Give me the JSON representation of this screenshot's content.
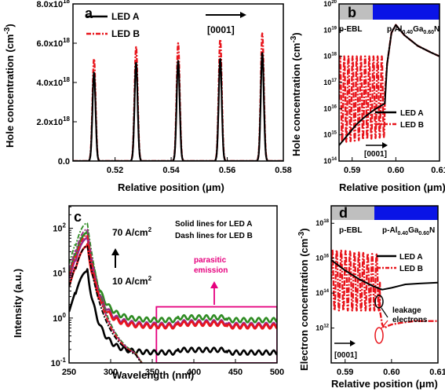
{
  "colors": {
    "ledA": "#000000",
    "ledB": "#e8141b",
    "green": "#2e8b22",
    "magenta": "#e6007e",
    "purple": "#9c2a8a",
    "pebl": "#bfbfbf",
    "algan": "#0a14e6"
  },
  "chart_data": [
    {
      "panel": "a",
      "type": "line",
      "xlabel": "Relative position (µm)",
      "ylabel": "Hole concentration (cm⁻³)",
      "xlim": [
        0.505,
        0.58
      ],
      "ylim": [
        0,
        8e+18
      ],
      "x_ticks": [
        "0.52",
        "0.54",
        "0.56",
        "0.58"
      ],
      "y_ticks": [
        "0.0",
        "2.0x10¹⁸",
        "4.0x10¹⁸",
        "6.0x10¹⁸",
        "8.0x10¹⁸"
      ],
      "direction_label": "[0001]",
      "peak_positions": [
        0.5125,
        0.5275,
        0.5425,
        0.5575,
        0.5725
      ],
      "series": [
        {
          "name": "LED A",
          "style": "solid",
          "peak_values": [
            4.5e+18,
            5e+18,
            5.1e+18,
            5.2e+18,
            5.5e+18
          ]
        },
        {
          "name": "LED B",
          "style": "dash-dot",
          "peak_values": [
            5.2e+18,
            5.8e+18,
            6e+18,
            6.2e+18,
            6.5e+18
          ]
        }
      ]
    },
    {
      "panel": "b",
      "type": "line",
      "xlabel": "Relative position (µm)",
      "ylabel": "Hole concentration (cm⁻³)",
      "xlim": [
        0.587,
        0.61
      ],
      "ylim_log10": [
        14,
        20
      ],
      "log_y": true,
      "x_ticks": [
        "0.59",
        "0.60",
        "0.61"
      ],
      "region_labels": [
        "p-EBL",
        "p-Al₀.₄₀Ga₀.₆₀N"
      ],
      "direction_label": "[0001]",
      "series": [
        {
          "name": "LED A",
          "style": "solid",
          "x": [
            0.587,
            0.589,
            0.591,
            0.593,
            0.595,
            0.597,
            0.5975,
            0.598,
            0.599,
            0.6,
            0.602,
            0.605,
            0.608,
            0.61
          ],
          "log10_y": [
            14.6,
            15.0,
            15.4,
            15.7,
            15.95,
            16.15,
            16.2,
            17.7,
            18.9,
            19.2,
            18.8,
            18.4,
            18.15,
            18.0
          ]
        },
        {
          "name": "LED B",
          "style": "dash-dot",
          "oscillation_log10_range": [
            15.0,
            18.0
          ],
          "x": [
            0.5975,
            0.598,
            0.599,
            0.6,
            0.602,
            0.605,
            0.608,
            0.61
          ],
          "log10_y": [
            16.6,
            17.7,
            18.9,
            19.2,
            18.8,
            18.4,
            18.15,
            18.0
          ]
        }
      ]
    },
    {
      "panel": "c",
      "type": "line",
      "xlabel": "Wavelength (nm)",
      "ylabel": "Intensity (a.u.)",
      "xlim": [
        250,
        500
      ],
      "ylim_log10": [
        -1,
        2.5
      ],
      "log_y": true,
      "x_ticks": [
        "250",
        "300",
        "350",
        "400",
        "450",
        "500"
      ],
      "y_ticks": [
        "10⁻¹",
        "10⁰",
        "10¹",
        "10²"
      ],
      "annotations": [
        "Solid lines for LED A",
        "Dash lines for LED B",
        "70 A/cm²",
        "10 A/cm²",
        "parasitic",
        "emission"
      ],
      "highlight_region_nm": [
        355,
        500
      ],
      "series": [
        {
          "color": "green",
          "style": "solid",
          "peak": 80,
          "tail": 0.9
        },
        {
          "color": "purple",
          "style": "solid",
          "peak": 60,
          "tail": 0.7
        },
        {
          "color": "red",
          "style": "solid",
          "peak": 40,
          "tail": 0.65
        },
        {
          "color": "black",
          "style": "solid",
          "peak": 11,
          "tail": 0.17
        },
        {
          "color": "green",
          "style": "dash-dot",
          "peak": 130,
          "tail": 0.1
        },
        {
          "color": "purple",
          "style": "dash-dot",
          "peak": 95,
          "tail": 0.1
        },
        {
          "color": "red",
          "style": "dash-dot",
          "peak": 70,
          "tail": 0.1
        },
        {
          "color": "black",
          "style": "dash-dot",
          "peak": 40,
          "tail": 0.1
        }
      ]
    },
    {
      "panel": "d",
      "type": "line",
      "xlabel": "Relative position (µm)",
      "ylabel": "Electron concentration (cm⁻³)",
      "xlim": [
        0.587,
        0.61
      ],
      "ylim_log10": [
        10,
        19
      ],
      "log_y": true,
      "x_ticks": [
        "0.59",
        "0.60",
        "0.61"
      ],
      "y_ticks": [
        "10¹²",
        "10¹⁴",
        "10¹⁶",
        "10¹⁸"
      ],
      "region_labels": [
        "p-EBL",
        "p-Al₀.₄₀Ga₀.₆₀N"
      ],
      "direction_label": "[0001]",
      "annotations": [
        "leakage",
        "electrons"
      ],
      "series": [
        {
          "name": "LED A",
          "style": "solid",
          "x": [
            0.587,
            0.59,
            0.593,
            0.596,
            0.598,
            0.6,
            0.603,
            0.606,
            0.61
          ],
          "log10_y": [
            15.9,
            15.3,
            14.8,
            14.4,
            14.2,
            14.3,
            14.5,
            14.55,
            14.6
          ]
        },
        {
          "name": "LED B",
          "style": "dash-dot",
          "oscillation_log10_range": [
            13.0,
            16.5
          ],
          "x": [
            0.5975,
            0.598,
            0.5985,
            0.599,
            0.6,
            0.602,
            0.605,
            0.608,
            0.61
          ],
          "log10_y": [
            13.0,
            12.2,
            12.0,
            12.1,
            12.2,
            12.3,
            12.4,
            12.4,
            12.4
          ]
        }
      ]
    }
  ],
  "texts": {
    "a_panel": "a",
    "b_panel": "b",
    "c_panel": "c",
    "d_panel": "d",
    "a_ylabel": "Hole concentration (cm",
    "b_ylabel": "Hole concentration (cm",
    "c_ylabel": "Intensity (a.u.)",
    "d_ylabel": "Electron concentration (cm",
    "xlabel_pos": "Relative position (μm)",
    "xlabel_wl": "Wavelength (nm)",
    "sup_m3": "-3",
    "paren": ")",
    "legA": "LED A",
    "legB": "LED B",
    "dir": "[0001]",
    "pebl": "p-EBL",
    "palgan_p": "p-Al",
    "sub40": "0.40",
    "ga": "Ga",
    "sub60": "0.60",
    "n": "N",
    "solid_note": "Solid lines for LED A",
    "dash_note": "Dash lines for LED B",
    "j70": "70 A/cm",
    "j10": "10 A/cm",
    "sup2": "2",
    "parasitic": "parasitic",
    "emission": "emission",
    "leak1": "leakage",
    "leak2": "electrons",
    "e10": "10"
  },
  "ticks": {
    "a_x": [
      "0.52",
      "0.54",
      "0.56",
      "0.58"
    ],
    "a_y": [
      "0.0",
      "2.0x10",
      "4.0x10",
      "6.0x10",
      "8.0x10"
    ],
    "a_y_exp": [
      "",
      "18",
      "18",
      "18",
      "18"
    ],
    "b_x": [
      "0.59",
      "0.60",
      "0.61"
    ],
    "b_y_exp": [
      "14",
      "15",
      "16",
      "17",
      "18",
      "19",
      "20"
    ],
    "c_x": [
      "250",
      "300",
      "350",
      "400",
      "450",
      "500"
    ],
    "c_y_exp": [
      "-1",
      "0",
      "1",
      "2"
    ],
    "d_x": [
      "0.59",
      "0.60",
      "0.61"
    ],
    "d_y_exp": [
      "12",
      "14",
      "16",
      "18"
    ]
  }
}
